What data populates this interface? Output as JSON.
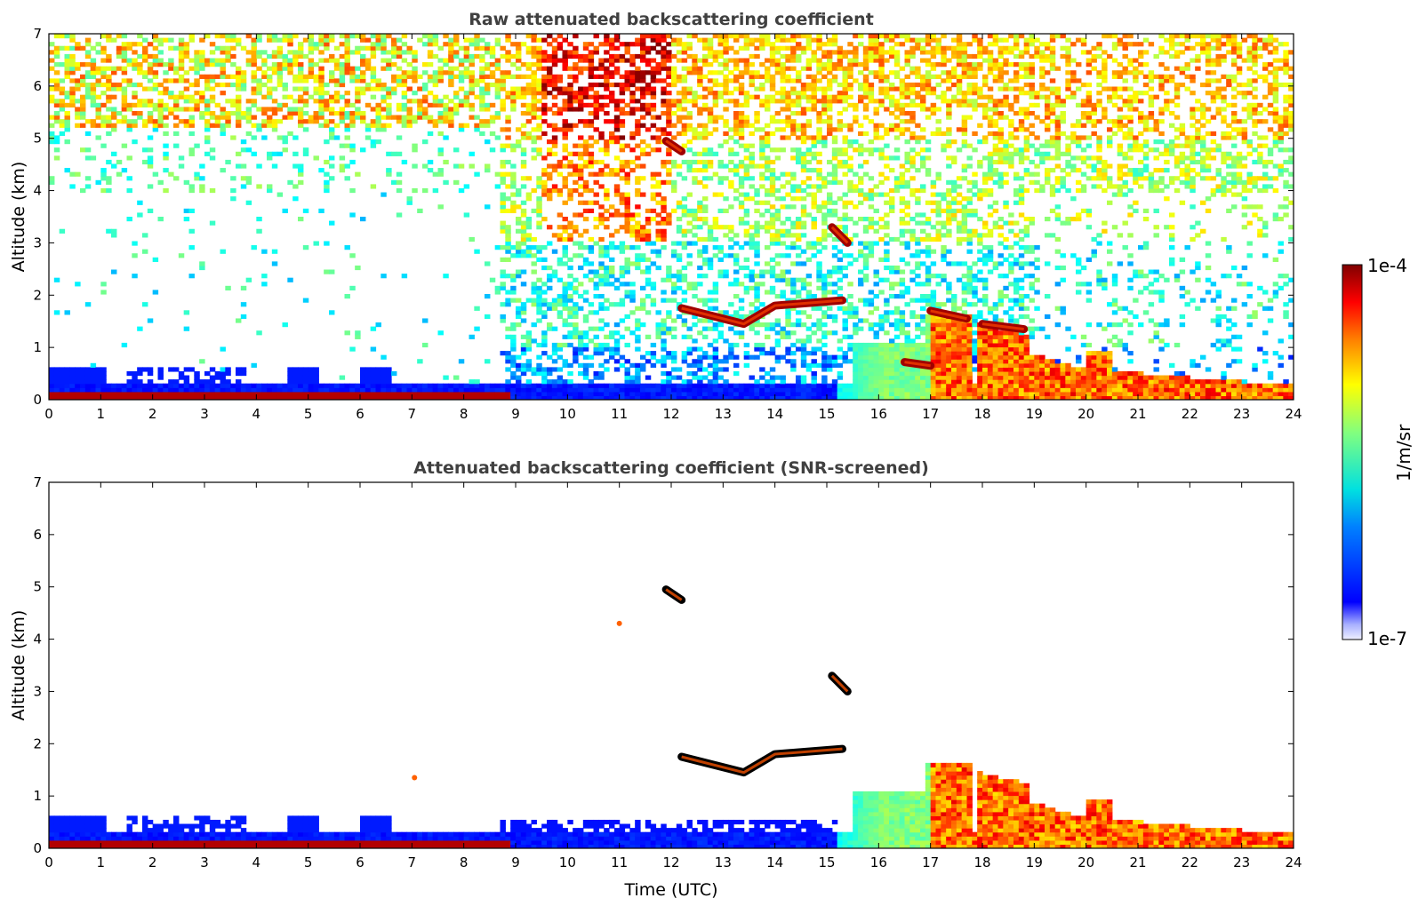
{
  "chart_data": [
    {
      "type": "heatmap",
      "title": "Raw attenuated backscattering coefficient",
      "xlabel": "",
      "ylabel": "Altitude (km)",
      "xlim": [
        0,
        24
      ],
      "ylim": [
        0,
        7
      ],
      "xticks": [
        "0",
        "1",
        "2",
        "3",
        "4",
        "5",
        "6",
        "7",
        "8",
        "9",
        "10",
        "11",
        "12",
        "13",
        "14",
        "15",
        "16",
        "17",
        "18",
        "19",
        "20",
        "21",
        "22",
        "23",
        "24"
      ],
      "yticks": [
        "0",
        "1",
        "2",
        "3",
        "4",
        "5",
        "6",
        "7"
      ],
      "screened": false,
      "features": [
        {
          "x": [
            12.2,
            13.4,
            14.0,
            15.3
          ],
          "y": [
            1.75,
            1.45,
            1.8,
            1.9
          ]
        },
        {
          "x": [
            11.9,
            12.2
          ],
          "y": [
            4.95,
            4.75
          ]
        },
        {
          "x": [
            15.1,
            15.4
          ],
          "y": [
            3.3,
            3.0
          ]
        },
        {
          "x": [
            16.5,
            17.0
          ],
          "y": [
            0.72,
            0.65
          ]
        },
        {
          "x": [
            17.0,
            17.7
          ],
          "y": [
            1.7,
            1.55
          ]
        },
        {
          "x": [
            18.0,
            18.8
          ],
          "y": [
            1.45,
            1.35
          ]
        }
      ]
    },
    {
      "type": "heatmap",
      "title": "Attenuated backscattering coefficient (SNR-screened)",
      "xlabel": "Time (UTC)",
      "ylabel": "Altitude (km)",
      "xlim": [
        0,
        24
      ],
      "ylim": [
        0,
        7
      ],
      "xticks": [
        "0",
        "1",
        "2",
        "3",
        "4",
        "5",
        "6",
        "7",
        "8",
        "9",
        "10",
        "11",
        "12",
        "13",
        "14",
        "15",
        "16",
        "17",
        "18",
        "19",
        "20",
        "21",
        "22",
        "23",
        "24"
      ],
      "yticks": [
        "0",
        "1",
        "2",
        "3",
        "4",
        "5",
        "6",
        "7"
      ],
      "screened": true,
      "features": [
        {
          "x": [
            12.2,
            13.4,
            14.0,
            15.3
          ],
          "y": [
            1.75,
            1.45,
            1.8,
            1.9
          ]
        },
        {
          "x": [
            11.9,
            12.2
          ],
          "y": [
            4.95,
            4.75
          ]
        },
        {
          "x": [
            15.1,
            15.4
          ],
          "y": [
            3.3,
            3.0
          ]
        },
        {
          "x": [
            11.0
          ],
          "y": [
            4.3
          ]
        },
        {
          "x": [
            7.05
          ],
          "y": [
            1.35
          ]
        }
      ]
    }
  ],
  "colorbar": {
    "max_label": "1e-4",
    "min_label": "1e-7",
    "unit_label": "1/m/sr",
    "colormap": "jet",
    "range": [
      1e-07,
      0.0001
    ]
  }
}
